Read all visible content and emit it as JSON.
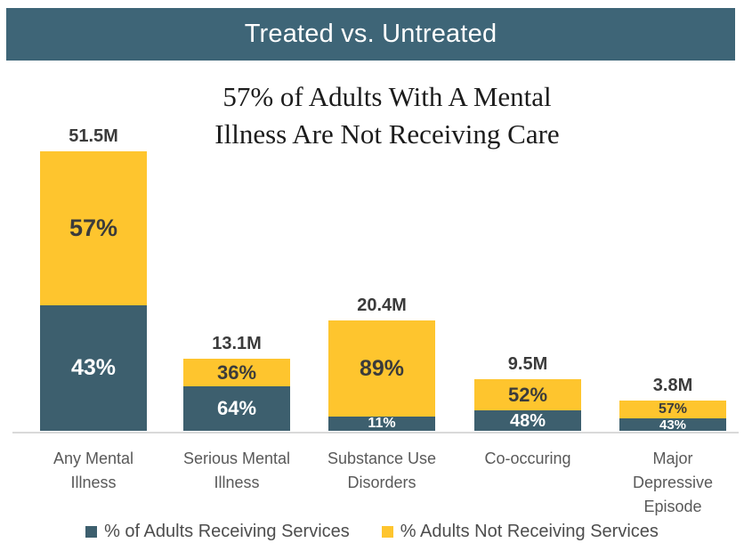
{
  "header": {
    "title": "Treated vs. Untreated"
  },
  "title": {
    "line1": "57% of Adults With A Mental",
    "line2": "Illness Are Not Receiving Care"
  },
  "colors": {
    "header_bg": "#3e6577",
    "receiving": "#3d5f6e",
    "not_receiving": "#fec52e",
    "axis_line": "#d9d9d9",
    "dark_label": "#3b3b3b",
    "gray_label": "#595959",
    "white_label": "#ffffff"
  },
  "chart_data": {
    "type": "bar",
    "stacked": true,
    "title": "57% of Adults With A Mental Illness Are Not Receiving Care",
    "categories": [
      "Any Mental Illness",
      "Serious Mental Illness",
      "Substance Use Disorders",
      "Co-occuring",
      "Major Depressive Episode"
    ],
    "category_lines": [
      [
        "Any Mental",
        "Illness"
      ],
      [
        "Serious Mental",
        "Illness"
      ],
      [
        "Substance Use",
        "Disorders"
      ],
      [
        "Co-occuring"
      ],
      [
        "Major",
        "Depressive",
        "Episode"
      ]
    ],
    "totals_label": [
      "51.5M",
      "13.1M",
      "20.4M",
      "9.5M",
      "3.8M"
    ],
    "totals_millions": [
      51.5,
      13.1,
      20.4,
      9.5,
      3.8
    ],
    "series": [
      {
        "name": "% of Adults Receiving Services",
        "color_key": "receiving",
        "values": [
          43,
          64,
          11,
          48,
          43
        ],
        "labels": [
          "43%",
          "64%",
          "11%",
          "48%",
          "43%"
        ]
      },
      {
        "name": "% Adults Not Receiving Services",
        "color_key": "not_receiving",
        "values": [
          57,
          36,
          89,
          52,
          57
        ],
        "labels": [
          "57%",
          "36%",
          "89%",
          "52%",
          "57%"
        ]
      }
    ],
    "value_unit": "percent of adults per category; totals shown in millions",
    "legend_position": "bottom",
    "grid": false
  }
}
